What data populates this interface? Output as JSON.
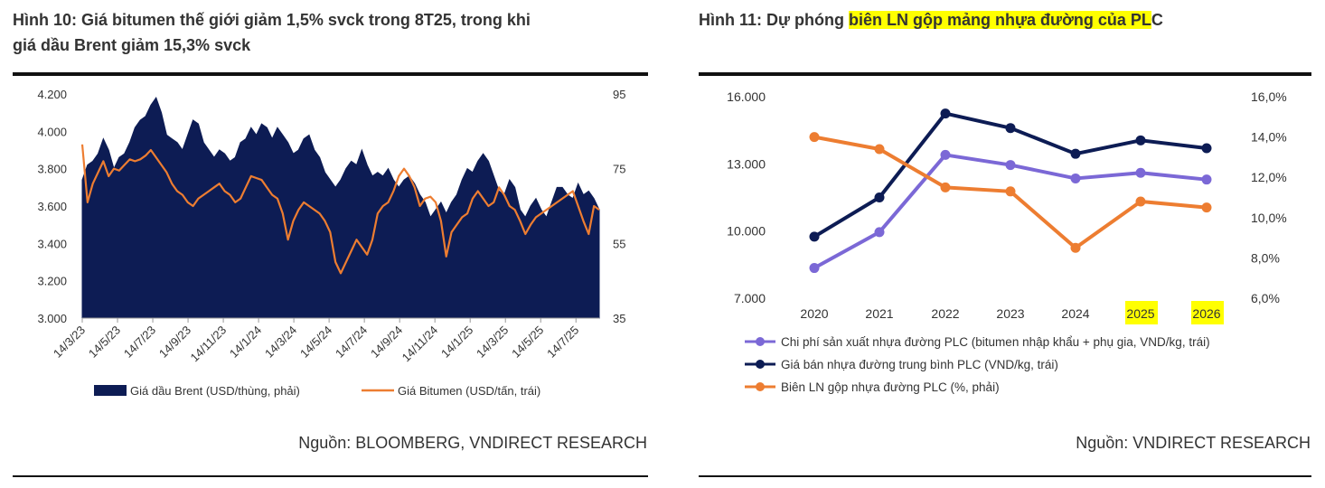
{
  "left": {
    "title_line1": "Hình 10: Giá bitumen thế giới giảm 1,5% svck trong 8T25, trong khi",
    "title_line2": "giá dầu Brent giảm 15,3% svck",
    "source": "Nguồn: BLOOMBERG, VNDIRECT RESEARCH"
  },
  "right": {
    "title_prefix": "Hình 11: Dự phóng ",
    "title_highlight": "biên LN gộp mảng nhựa đường của PL",
    "title_suffix": "C",
    "source": "Nguồn: VNDIRECT RESEARCH"
  },
  "chart_data": [
    {
      "type": "area+line",
      "title": "Hình 10: Giá bitumen thế giới giảm 1,5% svck trong 8T25, trong khi giá dầu Brent giảm 15,3% svck",
      "x_ticks": [
        "14/3/23",
        "14/5/23",
        "14/7/23",
        "14/9/23",
        "14/11/23",
        "14/1/24",
        "14/3/24",
        "14/5/24",
        "14/7/24",
        "14/9/24",
        "14/11/24",
        "14/1/25",
        "14/3/25",
        "14/5/25",
        "14/7/25"
      ],
      "y_left": {
        "min": 3000,
        "max": 4200,
        "ticks": [
          "3.000",
          "3.200",
          "3.400",
          "3.600",
          "3.800",
          "4.000",
          "4.200"
        ]
      },
      "y_right": {
        "min": 35,
        "max": 95,
        "ticks": [
          "35",
          "55",
          "75",
          "95"
        ]
      },
      "series": [
        {
          "name": "Giá dầu Brent (USD/thùng, phải)",
          "axis": "right",
          "style": "area",
          "color": "#0d1c54",
          "values": [
            72,
            76,
            77,
            79,
            83,
            80,
            75,
            78,
            79,
            82,
            86,
            88,
            89,
            92,
            94,
            90,
            84,
            83,
            82,
            80,
            84,
            88,
            87,
            82,
            80,
            78,
            80,
            79,
            77,
            78,
            82,
            83,
            86,
            84,
            87,
            86,
            83,
            86,
            84,
            82,
            79,
            80,
            83,
            84,
            80,
            78,
            74,
            72,
            70,
            72,
            75,
            77,
            76,
            80,
            76,
            73,
            74,
            73,
            75,
            72,
            70,
            72,
            73,
            71,
            68,
            66,
            62,
            64,
            66,
            63,
            66,
            68,
            72,
            75,
            74,
            77,
            79,
            77,
            73,
            69,
            68,
            72,
            70,
            64,
            62,
            65,
            67,
            64,
            62,
            66,
            70,
            70,
            68,
            67,
            71,
            68,
            69,
            67,
            64
          ]
        },
        {
          "name": "Giá Bitumen (USD/tấn, trái)",
          "axis": "left",
          "style": "line",
          "color": "#ed7d31",
          "values": [
            3930,
            3620,
            3720,
            3780,
            3840,
            3760,
            3800,
            3790,
            3820,
            3850,
            3840,
            3850,
            3870,
            3900,
            3860,
            3820,
            3780,
            3720,
            3680,
            3660,
            3620,
            3600,
            3640,
            3660,
            3680,
            3700,
            3720,
            3680,
            3660,
            3620,
            3640,
            3700,
            3760,
            3750,
            3740,
            3700,
            3660,
            3640,
            3560,
            3420,
            3520,
            3580,
            3620,
            3600,
            3580,
            3560,
            3520,
            3460,
            3300,
            3240,
            3300,
            3360,
            3420,
            3380,
            3340,
            3420,
            3560,
            3600,
            3620,
            3680,
            3760,
            3800,
            3760,
            3700,
            3600,
            3640,
            3650,
            3620,
            3520,
            3330,
            3460,
            3500,
            3540,
            3560,
            3640,
            3680,
            3640,
            3600,
            3620,
            3700,
            3660,
            3600,
            3580,
            3520,
            3450,
            3500,
            3540,
            3560,
            3580,
            3600,
            3620,
            3640,
            3660,
            3680,
            3600,
            3520,
            3450,
            3600,
            3580
          ]
        }
      ],
      "legend": [
        "Giá dầu Brent (USD/thùng, phải)",
        "Giá Bitumen (USD/tấn, trái)"
      ]
    },
    {
      "type": "line",
      "title": "Hình 11: Dự phóng biên LN gộp mảng nhựa đường của PLC",
      "categories": [
        "2020",
        "2021",
        "2022",
        "2023",
        "2024",
        "2025",
        "2026"
      ],
      "highlighted_categories": [
        "2025",
        "2026"
      ],
      "y_left": {
        "min": 7000,
        "max": 16000,
        "ticks": [
          "7.000",
          "10.000",
          "13.000",
          "16.000"
        ]
      },
      "y_right": {
        "min": 6,
        "max": 16,
        "ticks": [
          "6,0%",
          "8,0%",
          "10,0%",
          "12,0%",
          "14,0%",
          "16,0%"
        ]
      },
      "series": [
        {
          "name": "Chi phí sản xuất nhựa đường PLC (bitumen nhập khẩu + phụ gia, VND/kg, trái)",
          "axis": "left",
          "color": "#7b68d6",
          "values": [
            8350,
            9950,
            13400,
            12950,
            12350,
            12600,
            12300
          ]
        },
        {
          "name": "Giá bán nhựa đường trung bình PLC (VND/kg, trái)",
          "axis": "left",
          "color": "#0d1c54",
          "values": [
            9750,
            11500,
            15250,
            14600,
            13450,
            14050,
            13700
          ]
        },
        {
          "name": "Biên LN gộp nhựa đường PLC (%, phải)",
          "axis": "right",
          "color": "#ed7d31",
          "values": [
            14.0,
            13.4,
            11.5,
            11.3,
            8.5,
            10.8,
            10.5
          ]
        }
      ]
    }
  ]
}
